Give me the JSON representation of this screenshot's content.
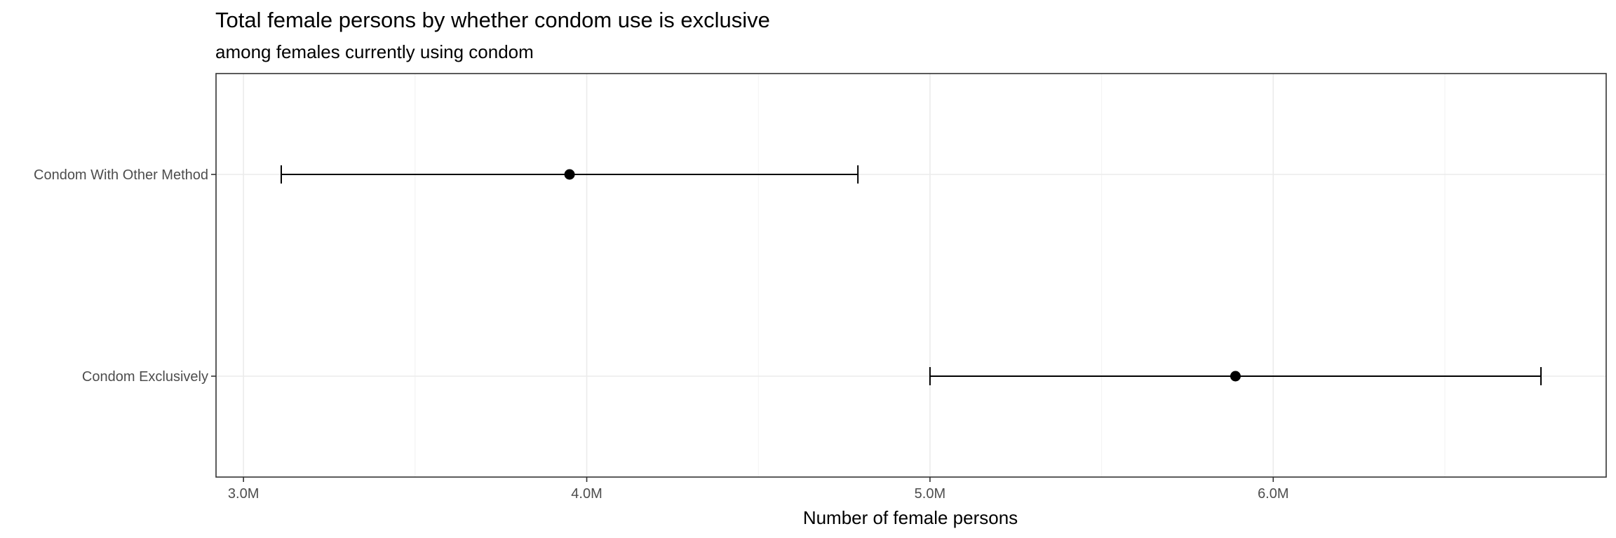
{
  "chart_data": {
    "type": "errorbar",
    "title": "Total female persons by whether condom use is exclusive",
    "subtitle": "among females currently using condom",
    "xlabel": "Number of female persons",
    "ylabel": "",
    "xlim": [
      2.92,
      6.97
    ],
    "x_unit_multiplier": 1000000,
    "x_ticks": [
      3.0,
      4.0,
      5.0,
      6.0
    ],
    "x_tick_labels": [
      "3.0M",
      "4.0M",
      "5.0M",
      "6.0M"
    ],
    "x_minor_ticks": [
      3.5,
      4.5,
      5.5,
      6.5
    ],
    "categories": [
      "Condom Exclusively",
      "Condom With Other Method"
    ],
    "points": [
      {
        "category": "Condom With Other Method",
        "estimate": 3.95,
        "lower": 3.11,
        "upper": 4.79
      },
      {
        "category": "Condom Exclusively",
        "estimate": 5.89,
        "lower": 5.0,
        "upper": 6.78
      }
    ],
    "grid": true,
    "legend": "none"
  }
}
